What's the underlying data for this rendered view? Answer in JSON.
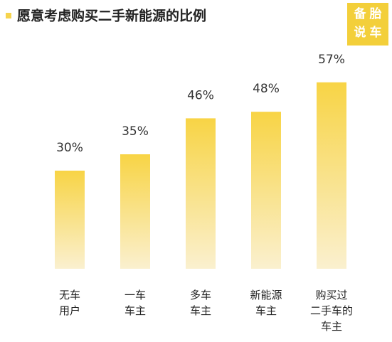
{
  "chart_data": {
    "type": "bar",
    "title": "愿意考虑购买二手新能源的比例",
    "logo": "备胎说车",
    "categories": [
      "无车\n用户",
      "一车\n车主",
      "多车\n车主",
      "新能源\n车主",
      "购买过\n二手车的\n车主"
    ],
    "values": [
      30,
      35,
      46,
      48,
      57
    ],
    "value_labels": [
      "30%",
      "35%",
      "46%",
      "48%",
      "57%"
    ],
    "color": "#f8d445"
  }
}
